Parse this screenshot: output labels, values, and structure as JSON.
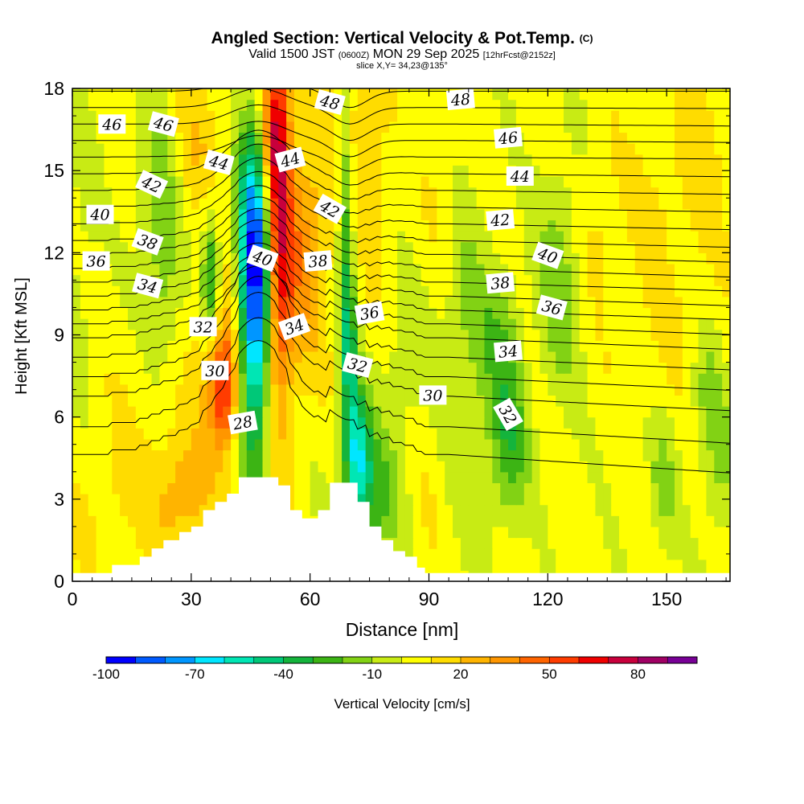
{
  "title": {
    "main": "Angled Section: Vertical Velocity & Pot.Temp.",
    "copyright": "(C)",
    "valid_prefix": "Valid 1500 JST",
    "utc": "(0600Z)",
    "valid_date": "MON 29 Sep 2025",
    "forecast": "[12hrFcst@2152z]",
    "slice": "slice X,Y= 34,23@135°"
  },
  "colors": {
    "terrain": "#ffffff",
    "contour": "#000000",
    "frame": "#000000",
    "palette": [
      "#0000ff",
      "#005aff",
      "#0096ff",
      "#00e6ff",
      "#00e6b4",
      "#00c878",
      "#14b43c",
      "#3cb414",
      "#82d214",
      "#c8eb14",
      "#ffff00",
      "#ffdc00",
      "#ffb400",
      "#ff9600",
      "#ff6400",
      "#ff3c00",
      "#f00000",
      "#c8003c",
      "#a00064",
      "#780096"
    ]
  },
  "chart_data": {
    "type": "heatmap",
    "xlabel": "Distance [nm]",
    "ylabel": "Height [Kft MSL]",
    "xlim": [
      0,
      166
    ],
    "ylim": [
      0,
      18
    ],
    "xticks": [
      0,
      30,
      60,
      90,
      120,
      150
    ],
    "yticks": [
      0,
      3,
      6,
      9,
      12,
      15,
      18
    ],
    "colorbar": {
      "label": "Vertical Velocity [cm/s]",
      "min": -100,
      "max": 100,
      "step": 10,
      "tick_values": [
        -100,
        -70,
        -40,
        -10,
        20,
        50,
        80
      ],
      "tick_labels": [
        "-100",
        "-70",
        "-40",
        "-10",
        "20",
        "50",
        "80"
      ]
    },
    "terrain_profile": [
      {
        "x": 0,
        "h": 0.3
      },
      {
        "x": 10,
        "h": 0.3
      },
      {
        "x": 10,
        "h": 0.6
      },
      {
        "x": 17,
        "h": 0.6
      },
      {
        "x": 17,
        "h": 0.9
      },
      {
        "x": 20,
        "h": 0.9
      },
      {
        "x": 20,
        "h": 1.2
      },
      {
        "x": 23,
        "h": 1.2
      },
      {
        "x": 23,
        "h": 1.5
      },
      {
        "x": 27,
        "h": 1.5
      },
      {
        "x": 27,
        "h": 1.8
      },
      {
        "x": 30,
        "h": 1.8
      },
      {
        "x": 30,
        "h": 2.0
      },
      {
        "x": 33,
        "h": 2.0
      },
      {
        "x": 33,
        "h": 2.6
      },
      {
        "x": 36,
        "h": 2.6
      },
      {
        "x": 36,
        "h": 2.9
      },
      {
        "x": 39,
        "h": 2.9
      },
      {
        "x": 39,
        "h": 3.2
      },
      {
        "x": 42,
        "h": 3.2
      },
      {
        "x": 42,
        "h": 3.8
      },
      {
        "x": 52,
        "h": 3.8
      },
      {
        "x": 52,
        "h": 3.5
      },
      {
        "x": 55,
        "h": 3.5
      },
      {
        "x": 55,
        "h": 2.6
      },
      {
        "x": 58,
        "h": 2.6
      },
      {
        "x": 58,
        "h": 2.3
      },
      {
        "x": 62,
        "h": 2.3
      },
      {
        "x": 62,
        "h": 2.6
      },
      {
        "x": 65,
        "h": 2.6
      },
      {
        "x": 65,
        "h": 3.6
      },
      {
        "x": 72,
        "h": 3.6
      },
      {
        "x": 72,
        "h": 2.9
      },
      {
        "x": 75,
        "h": 2.9
      },
      {
        "x": 75,
        "h": 2.0
      },
      {
        "x": 78,
        "h": 2.0
      },
      {
        "x": 78,
        "h": 1.5
      },
      {
        "x": 81,
        "h": 1.5
      },
      {
        "x": 81,
        "h": 1.1
      },
      {
        "x": 84,
        "h": 1.1
      },
      {
        "x": 84,
        "h": 0.9
      },
      {
        "x": 87,
        "h": 0.9
      },
      {
        "x": 87,
        "h": 0.5
      },
      {
        "x": 89,
        "h": 0.5
      },
      {
        "x": 89,
        "h": 0.3
      },
      {
        "x": 166,
        "h": 0.3
      }
    ],
    "velocity_features": [
      {
        "x": 2,
        "y": 12,
        "sx": 3,
        "sy": 4,
        "v": -8
      },
      {
        "x": 22,
        "y": 14,
        "sx": 4,
        "sy": 2.6,
        "v": -20
      },
      {
        "x": 23,
        "y": 10,
        "sx": 3,
        "sy": 2.2,
        "v": -12
      },
      {
        "x": 31,
        "y": 16,
        "sx": 5,
        "sy": 2,
        "v": 14
      },
      {
        "x": 35,
        "y": 11,
        "sx": 1.6,
        "sy": 1.8,
        "v": -45
      },
      {
        "x": 37,
        "y": 8,
        "sx": 4,
        "sy": 2.6,
        "v": 26
      },
      {
        "x": 27,
        "y": 3,
        "sx": 5,
        "sy": 1.6,
        "v": 22
      },
      {
        "x": 38,
        "y": 7,
        "sx": 2.2,
        "sy": 1.4,
        "v": 42
      },
      {
        "x": 46,
        "y": 10.5,
        "sx": 2.6,
        "sy": 4.6,
        "v": -78
      },
      {
        "x": 46,
        "y": 12.5,
        "sx": 3.5,
        "sy": 3,
        "v": -30
      },
      {
        "x": 52,
        "y": 12.8,
        "sx": 2.3,
        "sy": 4.6,
        "v": 60
      },
      {
        "x": 50,
        "y": 17,
        "sx": 3,
        "sy": 2.2,
        "v": 36
      },
      {
        "x": 56,
        "y": 11,
        "sx": 3.5,
        "sy": 3,
        "v": 18
      },
      {
        "x": 61,
        "y": 13,
        "sx": 4,
        "sy": 3,
        "v": 20
      },
      {
        "x": 69,
        "y": 13,
        "sx": 1.3,
        "sy": 4.5,
        "v": -30
      },
      {
        "x": 70,
        "y": 8,
        "sx": 1.6,
        "sy": 2.2,
        "v": -30
      },
      {
        "x": 72,
        "y": 4.6,
        "sx": 2.2,
        "sy": 1.6,
        "v": -55
      },
      {
        "x": 76,
        "y": 3,
        "sx": 5,
        "sy": 1.5,
        "v": -25
      },
      {
        "x": 77,
        "y": 13,
        "sx": 3,
        "sy": 3,
        "v": 12
      },
      {
        "x": 73,
        "y": 17,
        "sx": 3,
        "sy": 1.6,
        "v": 18
      },
      {
        "x": 83,
        "y": 7,
        "sx": 6,
        "sy": 3,
        "v": -14
      },
      {
        "x": 93,
        "y": 14,
        "sx": 3,
        "sy": 3,
        "v": 8
      },
      {
        "x": 90,
        "y": 5,
        "sx": 6,
        "sy": 3,
        "v": 10
      },
      {
        "x": 98,
        "y": 8,
        "sx": 5,
        "sy": 4,
        "v": -18
      },
      {
        "x": 110,
        "y": 5,
        "sx": 3.5,
        "sy": 2,
        "v": -30
      },
      {
        "x": 108,
        "y": 9,
        "sx": 4,
        "sy": 2,
        "v": -18
      },
      {
        "x": 123,
        "y": 11,
        "sx": 4,
        "sy": 3,
        "v": -20
      },
      {
        "x": 133,
        "y": 13,
        "sx": 4,
        "sy": 2,
        "v": 10
      },
      {
        "x": 148,
        "y": 14,
        "sx": 5,
        "sy": 2,
        "v": 8
      },
      {
        "x": 149,
        "y": 3.5,
        "sx": 2.5,
        "sy": 1.6,
        "v": -18
      },
      {
        "x": 160,
        "y": 7,
        "sx": 3,
        "sy": 1.6,
        "v": -15
      },
      {
        "x": 150,
        "y": 9,
        "sx": 8,
        "sy": 2,
        "v": 6
      },
      {
        "x": 163,
        "y": 4,
        "sx": 3,
        "sy": 2,
        "v": -15
      },
      {
        "x": 160,
        "y": 16,
        "sx": 5,
        "sy": 3,
        "v": 10
      },
      {
        "x": 20,
        "y": 6,
        "sx": 6,
        "sy": 2.5,
        "v": 5
      },
      {
        "x": 8,
        "y": 3,
        "sx": 6,
        "sy": 2,
        "v": 8
      }
    ],
    "isentropes": [
      {
        "theta": 28,
        "base": 4.8,
        "slope": 0.19,
        "f": 0
      },
      {
        "theta": 29,
        "base": 5.8,
        "slope": 0.17,
        "f": 0
      },
      {
        "theta": 30,
        "base": 6.9,
        "slope": 0.15,
        "f": 0
      },
      {
        "theta": 31,
        "base": 7.6,
        "slope": 0.14,
        "f": 0
      },
      {
        "theta": 32,
        "base": 8.3,
        "slope": 0.13,
        "f": 0
      },
      {
        "theta": 33,
        "base": 9.0,
        "slope": 0.12,
        "f": 0
      },
      {
        "theta": 34,
        "base": 9.5,
        "slope": 0.11,
        "f": 0.45
      },
      {
        "theta": 35,
        "base": 10.0,
        "slope": 0.1,
        "f": 0.5
      },
      {
        "theta": 36,
        "base": 10.5,
        "slope": 0.1,
        "f": 0.55
      },
      {
        "theta": 37,
        "base": 11.0,
        "slope": 0.09,
        "f": 0.6
      },
      {
        "theta": 38,
        "base": 11.5,
        "slope": 0.09,
        "f": 0.65
      },
      {
        "theta": 39,
        "base": 12.0,
        "slope": 0.08,
        "f": 0.7
      },
      {
        "theta": 40,
        "base": 12.5,
        "slope": 0.07,
        "f": 0.75
      },
      {
        "theta": 41,
        "base": 13.1,
        "slope": 0.06,
        "f": 0.8
      },
      {
        "theta": 42,
        "base": 13.7,
        "slope": 0.05,
        "f": 0.8
      },
      {
        "theta": 43,
        "base": 14.3,
        "slope": 0.04,
        "f": 0.8
      },
      {
        "theta": 44,
        "base": 14.9,
        "slope": 0.03,
        "f": 0.8
      },
      {
        "theta": 45,
        "base": 15.5,
        "slope": 0.02,
        "f": 0.8
      },
      {
        "theta": 46,
        "base": 16.1,
        "slope": 0.02,
        "f": 0.8
      },
      {
        "theta": 47,
        "base": 16.7,
        "slope": 0.02,
        "f": 0.8
      },
      {
        "theta": 48,
        "base": 17.3,
        "slope": 0.01,
        "f": 0.8
      },
      {
        "theta": 49,
        "base": 17.9,
        "slope": 0.0,
        "f": 0.8
      }
    ],
    "contour_labels": [
      {
        "text": "46",
        "x": 10,
        "y": 16.7,
        "rotate": 0
      },
      {
        "text": "46",
        "x": 23,
        "y": 16.7,
        "rotate": 15
      },
      {
        "text": "48",
        "x": 65,
        "y": 17.5,
        "rotate": 15
      },
      {
        "text": "48",
        "x": 98,
        "y": 17.6,
        "rotate": -5
      },
      {
        "text": "46",
        "x": 110,
        "y": 16.2,
        "rotate": -5
      },
      {
        "text": "44",
        "x": 37,
        "y": 15.3,
        "rotate": 15
      },
      {
        "text": "44",
        "x": 55,
        "y": 15.4,
        "rotate": -15
      },
      {
        "text": "44",
        "x": 113,
        "y": 14.8,
        "rotate": 0
      },
      {
        "text": "42",
        "x": 20,
        "y": 14.5,
        "rotate": 25
      },
      {
        "text": "42",
        "x": 65,
        "y": 13.6,
        "rotate": 30
      },
      {
        "text": "42",
        "x": 108,
        "y": 13.2,
        "rotate": -5
      },
      {
        "text": "40",
        "x": 7,
        "y": 13.4,
        "rotate": 0
      },
      {
        "text": "40",
        "x": 48,
        "y": 11.8,
        "rotate": 20
      },
      {
        "text": "40",
        "x": 120,
        "y": 11.9,
        "rotate": 20
      },
      {
        "text": "38",
        "x": 19,
        "y": 12.4,
        "rotate": 20
      },
      {
        "text": "38",
        "x": 62,
        "y": 11.7,
        "rotate": -5
      },
      {
        "text": "38",
        "x": 108,
        "y": 10.9,
        "rotate": -5
      },
      {
        "text": "36",
        "x": 6,
        "y": 11.7,
        "rotate": 0
      },
      {
        "text": "36",
        "x": 75,
        "y": 9.8,
        "rotate": -10
      },
      {
        "text": "36",
        "x": 121,
        "y": 10.0,
        "rotate": 15
      },
      {
        "text": "34",
        "x": 19,
        "y": 10.8,
        "rotate": 15
      },
      {
        "text": "34",
        "x": 56,
        "y": 9.3,
        "rotate": -20
      },
      {
        "text": "34",
        "x": 110,
        "y": 8.4,
        "rotate": -5
      },
      {
        "text": "32",
        "x": 33,
        "y": 9.3,
        "rotate": 0
      },
      {
        "text": "32",
        "x": 72,
        "y": 7.9,
        "rotate": 15
      },
      {
        "text": "32",
        "x": 110,
        "y": 6.1,
        "rotate": 60
      },
      {
        "text": "30",
        "x": 36,
        "y": 7.7,
        "rotate": 0
      },
      {
        "text": "30",
        "x": 91,
        "y": 6.8,
        "rotate": 0
      },
      {
        "text": "28",
        "x": 43,
        "y": 5.8,
        "rotate": -10
      }
    ]
  }
}
